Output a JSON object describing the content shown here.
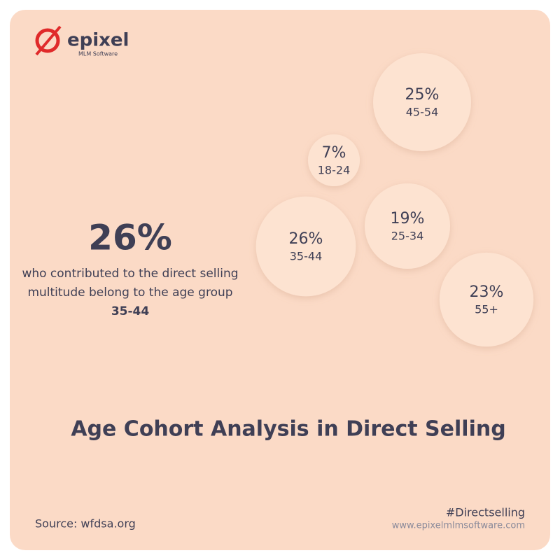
{
  "brand": {
    "name": "epixel",
    "tagline": "MLM Software"
  },
  "callout": {
    "value": "26%",
    "text": "who contributed to the direct selling multitude belong to the age group",
    "highlight": "35-44"
  },
  "chart_data": {
    "type": "bubble",
    "title": "Age Cohort Analysis in Direct Selling",
    "categories": [
      "45-54",
      "18-24",
      "35-44",
      "25-34",
      "55+"
    ],
    "values": [
      25,
      7,
      26,
      19,
      23
    ],
    "value_labels": [
      "25%",
      "7%",
      "26%",
      "19%",
      "23%"
    ],
    "color": "#fde3d1"
  },
  "footer": {
    "source": "Source: wfdsa.org",
    "hashtag": "#Directselling",
    "url": "www.epixelmlmsoftware.com"
  }
}
